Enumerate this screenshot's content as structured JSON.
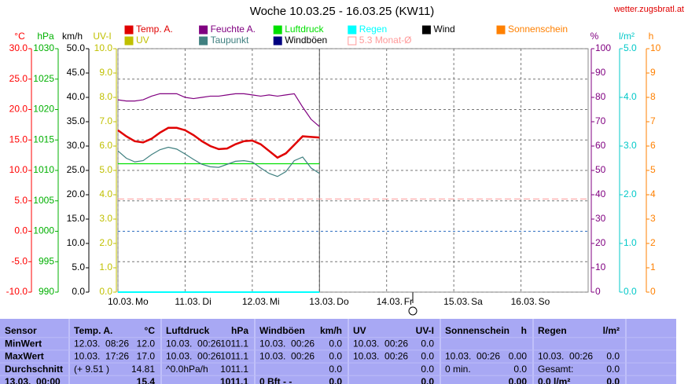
{
  "chart_data": {
    "type": "line",
    "title": "Woche 10.03.25 - 16.03.25 (KW11)",
    "source": "wetter.zugsbratl.at",
    "x": [
      0,
      3,
      6,
      9,
      12,
      15,
      18,
      21,
      24,
      27,
      30,
      33,
      36,
      39,
      42,
      45,
      48,
      51,
      54,
      57,
      60,
      63,
      66,
      69,
      72
    ],
    "xlim": [
      0,
      168
    ],
    "xticks": [
      {
        "value": 0,
        "label": "10.03."
      },
      {
        "value": 24,
        "label": "11.03."
      },
      {
        "value": 48,
        "label": "12.03."
      },
      {
        "value": 72,
        "label": "13.03."
      },
      {
        "value": 96,
        "label": "14.03."
      },
      {
        "value": 120,
        "label": "15.03."
      },
      {
        "value": 144,
        "label": "16.03."
      }
    ],
    "x_weekdays": [
      "Mo",
      "Di",
      "Mi",
      "Do",
      "Fr",
      "Sa",
      "So"
    ],
    "grid": true,
    "axes": {
      "celsius": {
        "title": "°C",
        "color": "#ff0000",
        "lim": [
          -10,
          30
        ],
        "ticks": [
          {
            "value": -10,
            "label": "-10.0"
          },
          {
            "value": -5,
            "label": "-5.0"
          },
          {
            "value": 0,
            "label": "0.0"
          },
          {
            "value": 5,
            "label": "5.0"
          },
          {
            "value": 10,
            "label": "10.0"
          },
          {
            "value": 15,
            "label": "15.0"
          },
          {
            "value": 20,
            "label": "20.0"
          },
          {
            "value": 25,
            "label": "25.0"
          },
          {
            "value": 30,
            "label": "30.0"
          }
        ]
      },
      "hpa": {
        "title": "hPa",
        "color": "#00b000",
        "lim": [
          990,
          1030
        ],
        "ticks": [
          990,
          995,
          1000,
          1005,
          1010,
          1015,
          1020,
          1025,
          1030
        ]
      },
      "kmh": {
        "title": "km/h",
        "color": "#000000",
        "lim": [
          0,
          50
        ],
        "ticks": [
          {
            "value": 0,
            "label": "0.0"
          },
          {
            "value": 5,
            "label": "5.0"
          },
          {
            "value": 10,
            "label": "10.0"
          },
          {
            "value": 15,
            "label": "15.0"
          },
          {
            "value": 20,
            "label": "20.0"
          },
          {
            "value": 25,
            "label": "25.0"
          },
          {
            "value": 30,
            "label": "30.0"
          },
          {
            "value": 35,
            "label": "35.0"
          },
          {
            "value": 40,
            "label": "40.0"
          },
          {
            "value": 45,
            "label": "45.0"
          },
          {
            "value": 50,
            "label": "50.0"
          }
        ]
      },
      "uv": {
        "title": "UV-I",
        "color": "#c0c000",
        "lim": [
          0,
          10
        ],
        "ticks": [
          {
            "value": 0,
            "label": "0.0"
          },
          {
            "value": 1,
            "label": "1.0"
          },
          {
            "value": 2,
            "label": "2.0"
          },
          {
            "value": 3,
            "label": "3.0"
          },
          {
            "value": 4,
            "label": "4.0"
          },
          {
            "value": 5,
            "label": "5.0"
          },
          {
            "value": 6,
            "label": "6.0"
          },
          {
            "value": 7,
            "label": "7.0"
          },
          {
            "value": 8,
            "label": "8.0"
          },
          {
            "value": 9,
            "label": "9.0"
          },
          {
            "value": 10,
            "label": "10.0"
          }
        ]
      },
      "pct": {
        "title": "%",
        "color": "#800080",
        "lim": [
          0,
          100
        ],
        "ticks": [
          0,
          10,
          20,
          30,
          40,
          50,
          60,
          70,
          80,
          90,
          100
        ]
      },
      "rain": {
        "title": "l/m²",
        "color": "#00c8c8",
        "lim": [
          0,
          5
        ],
        "ticks": [
          {
            "value": 0,
            "label": "0.0"
          },
          {
            "value": 1,
            "label": "1.0"
          },
          {
            "value": 2,
            "label": "2.0"
          },
          {
            "value": 3,
            "label": "3.0"
          },
          {
            "value": 4,
            "label": "4.0"
          },
          {
            "value": 5,
            "label": "5.0"
          }
        ]
      },
      "sun": {
        "title": "h",
        "color": "#ff8000",
        "lim": [
          0,
          10
        ],
        "ticks": [
          0,
          1,
          2,
          3,
          4,
          5,
          6,
          7,
          8,
          9,
          10
        ]
      }
    },
    "series": [
      {
        "name": "Temp. A.",
        "color": "#e00000",
        "axis": "celsius",
        "values": [
          16.6,
          15.6,
          14.8,
          14.6,
          15.2,
          16.2,
          17.0,
          17.0,
          16.6,
          15.8,
          14.8,
          14.0,
          13.5,
          13.6,
          14.3,
          14.8,
          14.9,
          14.3,
          13.2,
          12.1,
          12.8,
          14.2,
          15.6,
          15.5,
          15.4
        ]
      },
      {
        "name": "Feuchte A.",
        "color": "#800080",
        "axis": "pct",
        "values": [
          79,
          78.5,
          78.5,
          79,
          80.5,
          81.5,
          81.5,
          81.5,
          80,
          79.5,
          80,
          80.5,
          80.5,
          81,
          81.5,
          81.5,
          81,
          80.5,
          81,
          80.5,
          81,
          81.5,
          76,
          71,
          68
        ]
      },
      {
        "name": "Luftdruck",
        "color": "#00e000",
        "axis": "hpa",
        "values": [
          1011.1,
          1011.1,
          1011.1,
          1011.1,
          1011.1,
          1011.1,
          1011.1,
          1011.1,
          1011.1,
          1011.1,
          1011.1,
          1011.1,
          1011.1,
          1011.1,
          1011.1,
          1011.1,
          1011.1,
          1011.1,
          1011.1,
          1011.1,
          1011.1,
          1011.1,
          1011.1,
          1011.1,
          1011.1
        ]
      },
      {
        "name": "Regen",
        "color": "#00ffff",
        "axis": "rain",
        "values": [
          0,
          0,
          0,
          0,
          0,
          0,
          0,
          0,
          0,
          0,
          0,
          0,
          0,
          0,
          0,
          0,
          0,
          0,
          0,
          0,
          0,
          0,
          0,
          0,
          0
        ]
      },
      {
        "name": "Taupunkt",
        "color": "#408080",
        "axis": "celsius",
        "values": [
          13.2,
          12.0,
          11.4,
          11.6,
          12.6,
          13.4,
          13.8,
          13.5,
          12.7,
          11.8,
          11.0,
          10.6,
          10.5,
          11.0,
          11.5,
          11.6,
          11.4,
          10.4,
          9.5,
          9.0,
          9.8,
          11.6,
          12.2,
          10.4,
          9.5
        ]
      }
    ],
    "legend_extra": [
      {
        "name": "Wind",
        "color": "#000000"
      },
      {
        "name": "Sonnenschein",
        "color": "#ff8000"
      },
      {
        "name": "UV",
        "color": "#c0c000"
      },
      {
        "name": "Windböen",
        "color": "#000080"
      }
    ],
    "reference": {
      "name": "5.3 Monat-Ø",
      "value": 5.3,
      "axis": "celsius",
      "color": "#ff9999"
    },
    "marker_lines": [
      {
        "value": 0,
        "axis": "celsius",
        "color": "#3070c0"
      }
    ]
  },
  "table": {
    "columns": [
      {
        "name": "Sensor"
      },
      {
        "name": "Temp. A.",
        "unit": "°C"
      },
      {
        "name": "Luftdruck",
        "unit": "hPa"
      },
      {
        "name": "Windböen",
        "unit": "km/h"
      },
      {
        "name": "UV",
        "unit": "UV-I"
      },
      {
        "name": "Sonnenschein",
        "unit": "h"
      },
      {
        "name": "Regen",
        "unit": "l/m²"
      }
    ],
    "rows": [
      {
        "label": "MinWert",
        "cells": [
          {
            "time": "12.03.  08:26",
            "value": "12.0"
          },
          {
            "time": "10.03.  00:26",
            "value": "1011.1"
          },
          {
            "time": "10.03.  00:26",
            "value": "0.0"
          },
          {
            "time": "10.03.  00:26",
            "value": "0.0"
          },
          {},
          {}
        ]
      },
      {
        "label": "MaxWert",
        "cells": [
          {
            "time": "10.03.  17:26",
            "value": "17.0"
          },
          {
            "time": "10.03.  00:26",
            "value": "1011.1"
          },
          {
            "time": "10.03.  00:26",
            "value": "0.0"
          },
          {
            "time": "10.03.  00:26",
            "value": "0.0"
          },
          {
            "time": "10.03.  00:26",
            "value": "0.00"
          },
          {
            "time": "10.03.  00:26",
            "value": "0.0"
          }
        ]
      },
      {
        "label": "Durchschnitt",
        "cells": [
          {
            "time": "(+ 9.51 )",
            "value": "14.81"
          },
          {
            "time": "^0.0hPa/h",
            "value": "1011.1"
          },
          {
            "value": "0.0"
          },
          {
            "value": "0.0"
          },
          {
            "time": "0 min.",
            "value": "0.0"
          },
          {
            "time": "Gesamt:",
            "value": "0.0"
          }
        ]
      },
      {
        "label": "13.03.  00:00",
        "cells": [
          {
            "value": "15.4"
          },
          {
            "value": "1011.1"
          },
          {
            "time": "0 Bft - -",
            "value": "0.0"
          },
          {
            "value": "0.0"
          },
          {
            "value": "0.00"
          },
          {
            "time": "0.0 l/m²",
            "value": "0.0"
          }
        ]
      }
    ]
  }
}
